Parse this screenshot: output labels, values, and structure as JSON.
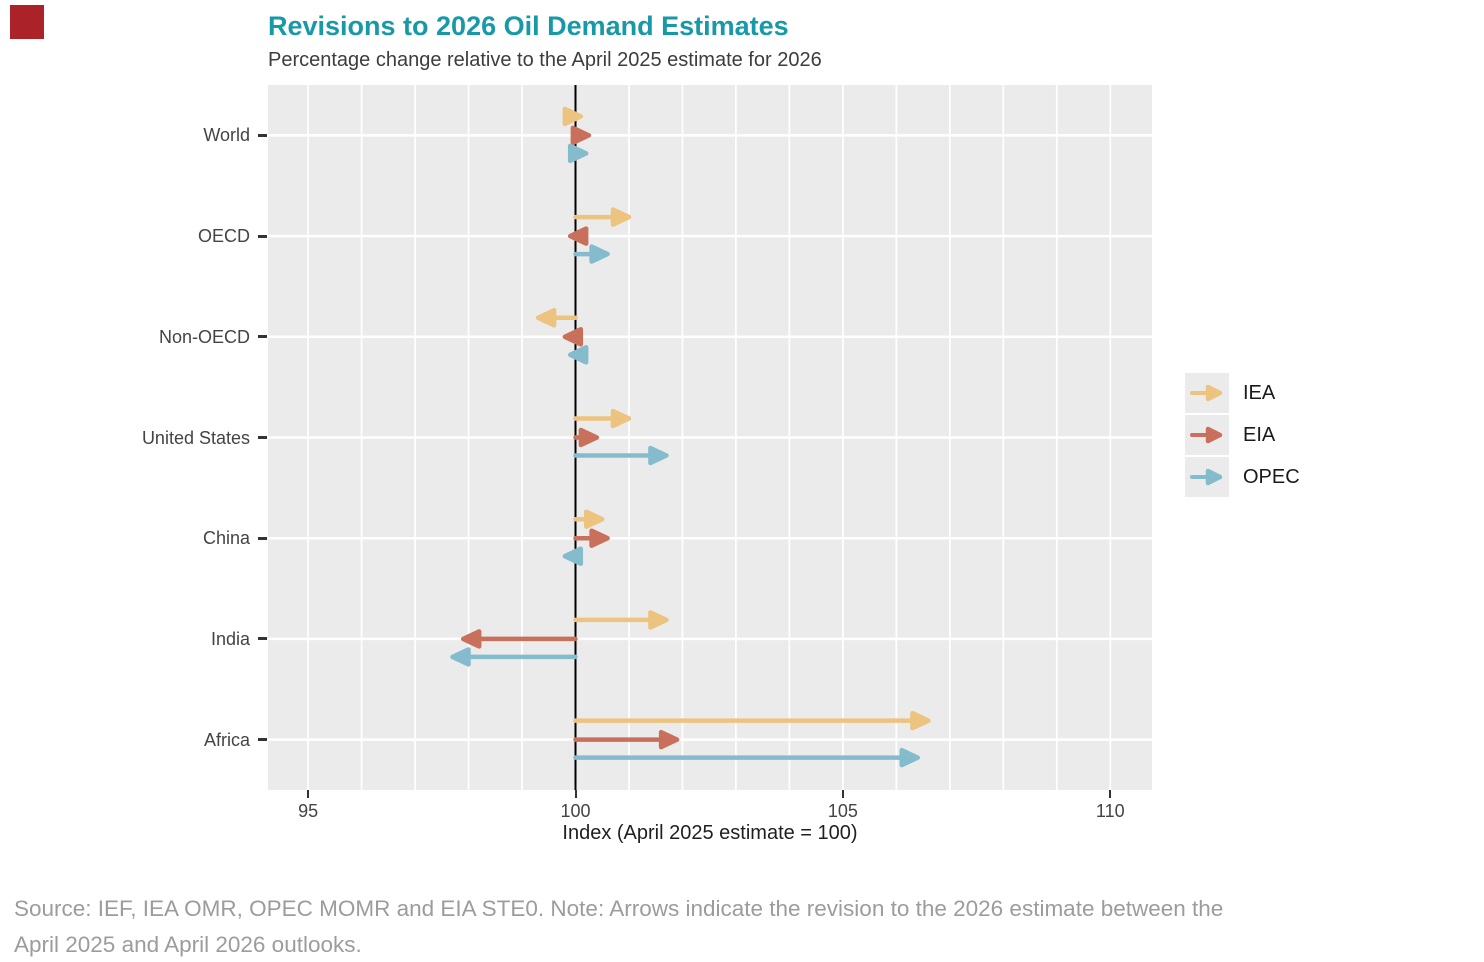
{
  "logo": {
    "color": "#ab2328"
  },
  "header": {
    "title": "Revisions to 2026 Oil Demand Estimates",
    "title_color": "#1899a8",
    "subtitle": "Percentage change relative to the April 2025 estimate for 2026"
  },
  "chart_data": {
    "type": "arrow",
    "description": "Horizontal arrows start at the baseline (100 = April 2025 estimate) and point to the revised April 2026 index value for each region and forecasting source",
    "categories": [
      "World",
      "OECD",
      "Non-OECD",
      "United States",
      "China",
      "India",
      "Africa"
    ],
    "baseline": 100,
    "series": [
      {
        "name": "IEA",
        "color": "#ecc37f",
        "values": [
          100.1,
          101.0,
          99.3,
          101.0,
          100.5,
          101.7,
          106.6
        ]
      },
      {
        "name": "EIA",
        "color": "#c8705b",
        "values": [
          100.25,
          99.9,
          99.8,
          100.4,
          100.6,
          97.9,
          101.9
        ]
      },
      {
        "name": "OPEC",
        "color": "#85bccd",
        "values": [
          100.2,
          100.6,
          99.9,
          101.7,
          99.8,
          97.7,
          106.4
        ]
      }
    ],
    "x_axis": {
      "label": "Index (April 2025 estimate = 100)",
      "labeled_ticks": [
        95,
        100,
        105,
        110
      ],
      "min": 94.25,
      "max": 110.78,
      "gridline_step": 1
    },
    "legend_position": "right",
    "plot_background": "#ebebeb",
    "gridline_color": "#ffffff",
    "baseline_color": "#000000"
  },
  "source_note": {
    "line1": "Source: IEF, IEA OMR, OPEC MOMR and EIA STE0. Note: Arrows indicate the revision to the 2026 estimate between the",
    "line2": "April 2025 and April 2026 outlooks."
  }
}
